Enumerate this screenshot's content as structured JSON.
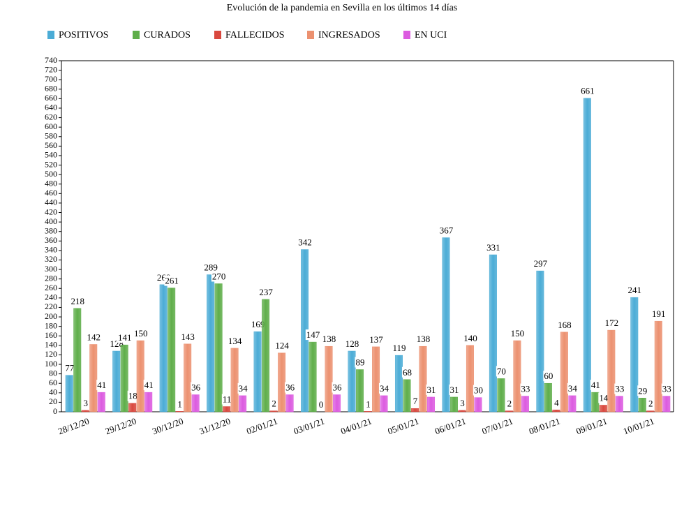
{
  "chart_data": {
    "type": "bar",
    "title": "Evolución de la pandemia en Sevilla en los últimos 14 días",
    "categories": [
      "28/12/20",
      "29/12/20",
      "30/12/20",
      "31/12/20",
      "02/01/21",
      "03/01/21",
      "04/01/21",
      "05/01/21",
      "06/01/21",
      "07/01/21",
      "08/01/21",
      "09/01/21",
      "10/01/21"
    ],
    "series": [
      {
        "name": "POSITIVOS",
        "color": "#4bacd6",
        "values": [
          77,
          128,
          268,
          289,
          169,
          342,
          128,
          119,
          367,
          331,
          297,
          661,
          241
        ]
      },
      {
        "name": "CURADOS",
        "color": "#5fae4a",
        "values": [
          218,
          141,
          261,
          270,
          237,
          147,
          89,
          68,
          31,
          70,
          60,
          41,
          29
        ]
      },
      {
        "name": "FALLECIDOS",
        "color": "#d9483e",
        "values": [
          3,
          18,
          1,
          11,
          2,
          0,
          1,
          7,
          3,
          2,
          4,
          14,
          2
        ]
      },
      {
        "name": "INGRESADOS",
        "color": "#ec9170",
        "values": [
          142,
          150,
          143,
          134,
          124,
          138,
          137,
          138,
          140,
          150,
          168,
          172,
          191
        ]
      },
      {
        "name": "EN UCI",
        "color": "#dc5be0",
        "values": [
          41,
          41,
          36,
          34,
          36,
          36,
          34,
          31,
          30,
          33,
          34,
          33,
          33
        ]
      }
    ],
    "ylim": [
      0,
      740
    ],
    "yticks": [
      0,
      20,
      40,
      60,
      80,
      100,
      120,
      140,
      160,
      180,
      200,
      220,
      240,
      260,
      280,
      300,
      320,
      340,
      360,
      380,
      400,
      420,
      440,
      460,
      480,
      500,
      520,
      540,
      560,
      580,
      600,
      620,
      640,
      660,
      680,
      700,
      720,
      740
    ]
  }
}
